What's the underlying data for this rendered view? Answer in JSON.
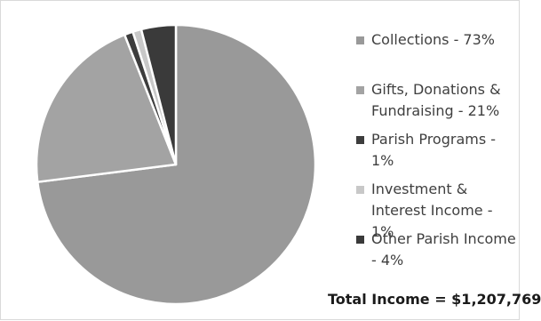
{
  "chart_data": {
    "type": "pie",
    "slices": [
      {
        "label": "Collections - 73%",
        "value": 73,
        "color": "#999999"
      },
      {
        "label": "Gifts, Donations & Fundraising - 21%",
        "value": 21,
        "color": "#a3a3a3"
      },
      {
        "label": "Parish Programs - 1%",
        "value": 1,
        "color": "#3d3d3d"
      },
      {
        "label": "Investment & Interest Income - 1%",
        "value": 1,
        "color": "#c8c8c8"
      },
      {
        "label": "Other Parish Income - 4%",
        "value": 4,
        "color": "#3a3a3a"
      }
    ],
    "start_angle_deg": 0,
    "direction": "clockwise",
    "legend_position": "right"
  },
  "total_label": "Total Income = $1,207,769"
}
